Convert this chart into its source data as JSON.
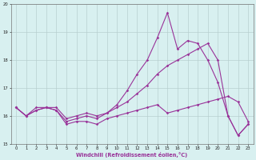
{
  "x": [
    0,
    1,
    2,
    3,
    4,
    5,
    6,
    7,
    8,
    9,
    10,
    11,
    12,
    13,
    14,
    15,
    16,
    17,
    18,
    19,
    20,
    21,
    22,
    23
  ],
  "line_jagged": [
    16.3,
    16.0,
    16.3,
    16.3,
    16.2,
    15.8,
    15.9,
    16.0,
    15.9,
    16.1,
    16.4,
    16.9,
    17.5,
    18.0,
    18.8,
    19.7,
    18.4,
    18.7,
    18.6,
    18.0,
    17.2,
    16.0,
    15.3,
    15.7
  ],
  "line_rising": [
    16.3,
    16.0,
    16.2,
    16.3,
    16.3,
    15.9,
    16.0,
    16.1,
    16.0,
    16.1,
    16.3,
    16.5,
    16.8,
    17.1,
    17.5,
    17.8,
    18.0,
    18.2,
    18.4,
    18.6,
    18.0,
    16.0,
    15.3,
    15.7
  ],
  "line_flat": [
    16.3,
    16.0,
    16.2,
    16.3,
    16.2,
    15.7,
    15.8,
    15.8,
    15.7,
    15.9,
    16.0,
    16.1,
    16.2,
    16.3,
    16.4,
    16.1,
    16.2,
    16.3,
    16.4,
    16.5,
    16.6,
    16.7,
    16.5,
    15.8
  ],
  "line_color": "#993399",
  "bg_color": "#d8f0f0",
  "grid_color": "#b8d0d0",
  "xlabel": "Windchill (Refroidissement éolien,°C)",
  "ylim": [
    15,
    20
  ],
  "xlim": [
    -0.5,
    23.5
  ],
  "yticks": [
    15,
    16,
    17,
    18,
    19,
    20
  ],
  "xticks": [
    0,
    1,
    2,
    3,
    4,
    5,
    6,
    7,
    8,
    9,
    10,
    11,
    12,
    13,
    14,
    15,
    16,
    17,
    18,
    19,
    20,
    21,
    22,
    23
  ]
}
